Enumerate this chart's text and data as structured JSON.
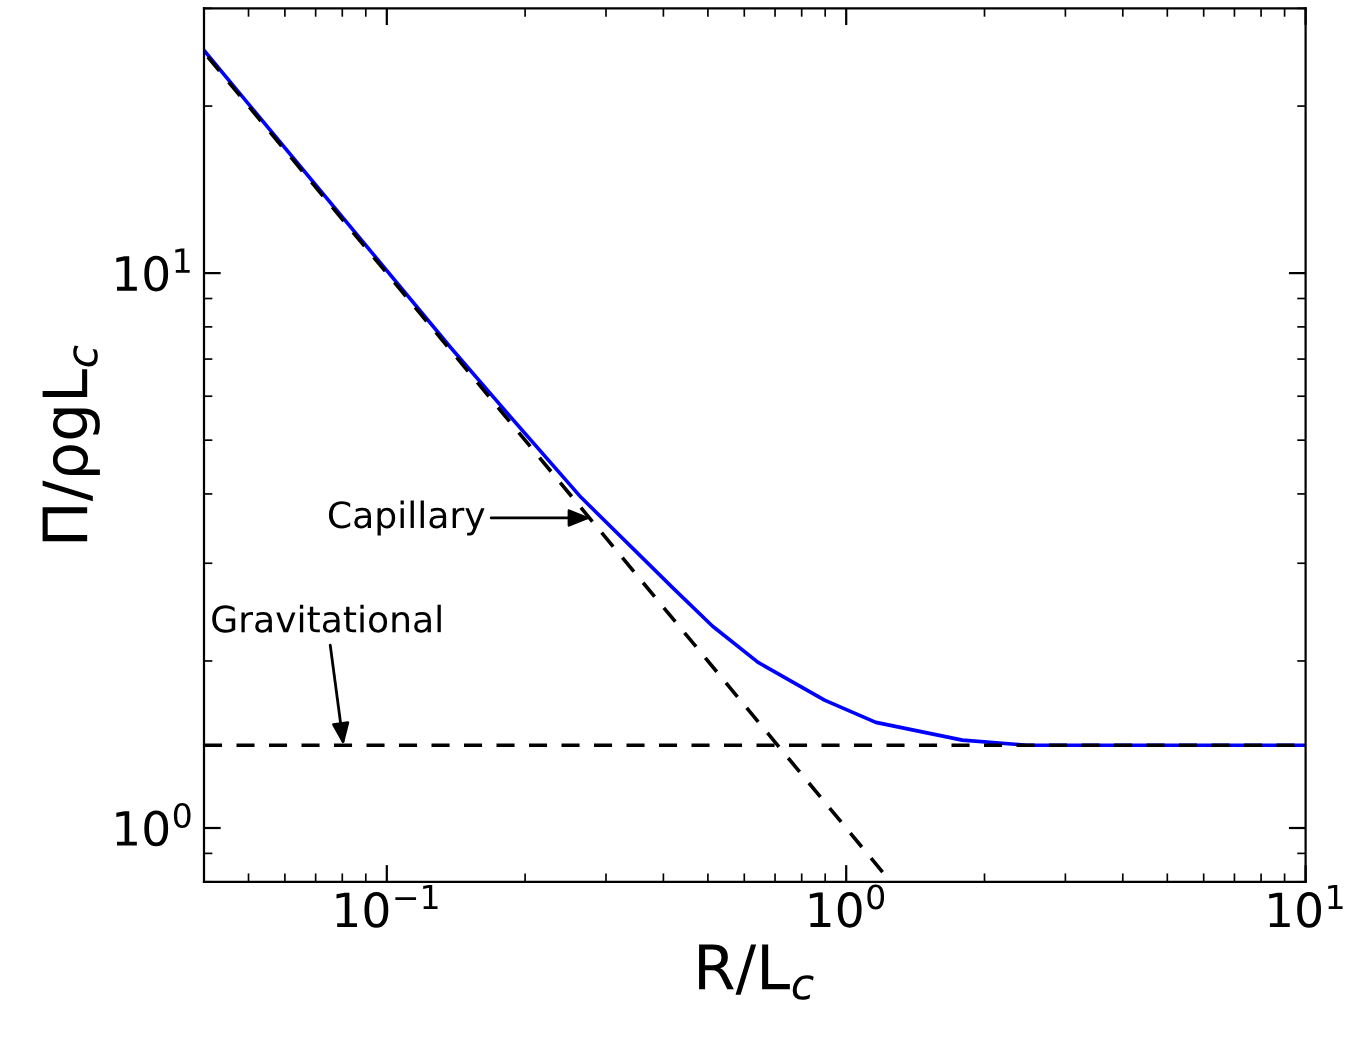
{
  "chart_data": {
    "type": "line",
    "xlabel": "R/L$_{c}$",
    "ylabel": "Π/ρgL$_{c}$",
    "log": "xy",
    "grid": false,
    "legend": false,
    "xlim": [
      0.04,
      10
    ],
    "ylim": [
      0.8,
      30
    ],
    "xticks": [
      {
        "value": 0.1,
        "label": "10$^{−1}$"
      },
      {
        "value": 1,
        "label": "10$^{0}$"
      },
      {
        "value": 10,
        "label": "10$^{1}$"
      }
    ],
    "yticks": [
      {
        "value": 1,
        "label": "10$^{0}$"
      },
      {
        "value": 10,
        "label": "10$^{1}$"
      }
    ],
    "series": [
      {
        "color": "#0000ff",
        "line_style": "solid",
        "x": [
          0.04,
          0.138,
          0.179,
          0.265,
          0.421,
          0.512,
          0.642,
          0.897,
          1.16,
          1.79,
          2.47,
          10
        ],
        "values": [
          25.2,
          7.33,
          5.71,
          3.94,
          2.7,
          2.31,
          1.99,
          1.7,
          1.55,
          1.44,
          1.41,
          1.41
        ]
      },
      {
        "color": "#000000",
        "line_style": "dashed",
        "x": [
          0.04,
          1.2
        ],
        "values": [
          25,
          0.833
        ]
      }
    ],
    "ref_lines": [
      {
        "axis": "y",
        "value": 1.41,
        "color": "#000000",
        "line_style": "dashed"
      }
    ],
    "annotations": [
      {
        "text": "Capillary",
        "x": 0.278,
        "y": 3.62
      },
      {
        "text": "Gravitational",
        "x": 0.0805,
        "y": 1.41
      }
    ]
  }
}
